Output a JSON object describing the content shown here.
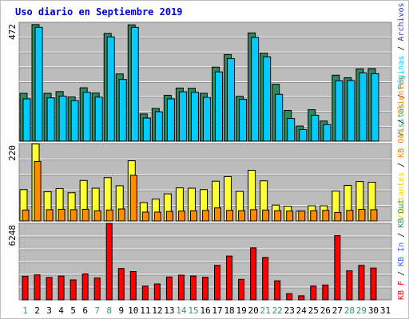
{
  "title": "Uso diario en Septiembre 2019",
  "colors": {
    "title": "#0000cc",
    "weekday": "#000000",
    "weekend": "#339966",
    "visitas": "#339966",
    "paginas": "#00ccff",
    "solicitudes": "#ffff33",
    "kb_f": "#ff7f00",
    "kb": "#ff0000",
    "plot_bg": "#bcbcbc",
    "grid": "#ffffff"
  },
  "chart_data": [
    {
      "type": "bar",
      "panel": "top",
      "ylim": [
        0,
        472
      ],
      "ytick_label": "472",
      "categories": [
        "1",
        "2",
        "3",
        "4",
        "5",
        "6",
        "7",
        "8",
        "9",
        "10",
        "11",
        "12",
        "13",
        "14",
        "15",
        "16",
        "17",
        "18",
        "19",
        "20",
        "21",
        "22",
        "23",
        "24",
        "25",
        "26",
        "27",
        "28",
        "29",
        "30",
        "31"
      ],
      "series": [
        {
          "name": "Visitas",
          "color": "#339966",
          "values": [
            190,
            463,
            190,
            197,
            176,
            212,
            191,
            428,
            267,
            462,
            108,
            130,
            182,
            211,
            210,
            190,
            294,
            344,
            178,
            430,
            350,
            226,
            122,
            60,
            125,
            80,
            262,
            252,
            287,
            288,
            0
          ]
        },
        {
          "name": "Páginas",
          "color": "#00ccff",
          "values": [
            168,
            452,
            172,
            179,
            161,
            194,
            175,
            414,
            245,
            452,
            92,
            117,
            168,
            196,
            194,
            174,
            275,
            328,
            166,
            412,
            335,
            186,
            90,
            46,
            103,
            66,
            240,
            241,
            271,
            268,
            0
          ]
        }
      ]
    },
    {
      "type": "bar",
      "panel": "middle",
      "ylim": [
        0,
        220
      ],
      "ytick_label": "220",
      "categories": [
        "1",
        "2",
        "3",
        "4",
        "5",
        "6",
        "7",
        "8",
        "9",
        "10",
        "11",
        "12",
        "13",
        "14",
        "15",
        "16",
        "17",
        "18",
        "19",
        "20",
        "21",
        "22",
        "23",
        "24",
        "25",
        "26",
        "27",
        "28",
        "29",
        "30",
        "31"
      ],
      "series": [
        {
          "name": "Solicitudes",
          "color": "#ffff33",
          "values": [
            89,
            219,
            83,
            92,
            80,
            115,
            93,
            123,
            100,
            171,
            52,
            62,
            77,
            94,
            93,
            89,
            113,
            126,
            84,
            144,
            114,
            45,
            42,
            28,
            43,
            43,
            85,
            101,
            112,
            110,
            0
          ]
        },
        {
          "name": "KB F",
          "color": "#ff7f00",
          "values": [
            31,
            169,
            32,
            33,
            32,
            33,
            29,
            31,
            34,
            130,
            25,
            25,
            27,
            28,
            29,
            30,
            37,
            30,
            29,
            32,
            31,
            29,
            28,
            28,
            29,
            30,
            24,
            30,
            33,
            32,
            0
          ]
        }
      ]
    },
    {
      "type": "bar",
      "panel": "bottom",
      "ylim": [
        0,
        6248
      ],
      "ytick_label": "6248",
      "categories": [
        "1",
        "2",
        "3",
        "4",
        "5",
        "6",
        "7",
        "8",
        "9",
        "10",
        "11",
        "12",
        "13",
        "14",
        "15",
        "16",
        "17",
        "18",
        "19",
        "20",
        "21",
        "22",
        "23",
        "24",
        "25",
        "26",
        "27",
        "28",
        "29",
        "30",
        "31"
      ],
      "series": [
        {
          "name": "KB",
          "color": "#ff0000",
          "values": [
            1925,
            2043,
            1830,
            1940,
            1630,
            2115,
            1790,
            6248,
            2560,
            2310,
            1124,
            1299,
            1865,
            2023,
            1941,
            1845,
            2815,
            3572,
            1674,
            4245,
            3460,
            1555,
            504,
            333,
            1130,
            1216,
            5237,
            2370,
            2815,
            2595,
            0
          ]
        }
      ]
    }
  ],
  "right_legend": {
    "top": [
      {
        "text": "Visitas",
        "color": "#339966"
      },
      {
        "text": "Páginas",
        "color": "#00ccff"
      },
      {
        "text": "Archivos",
        "color": "#3333cc"
      },
      {
        "text": "Accesos",
        "color": "#339966"
      }
    ],
    "middle": [
      {
        "text": "Visitantes",
        "color": "#ffcc00"
      },
      {
        "text": "KB Out",
        "color": "#ff7f00"
      },
      {
        "text": "Clientes",
        "color": "#ff7f00"
      }
    ],
    "bottom": [
      {
        "text": "KB F",
        "color": "#ff0000"
      },
      {
        "text": "KB In",
        "color": "#3366ff"
      },
      {
        "text": "KB Out",
        "color": "#339966"
      }
    ]
  },
  "weekend_days": [
    1,
    7,
    8,
    14,
    15,
    21,
    22,
    28,
    29
  ]
}
